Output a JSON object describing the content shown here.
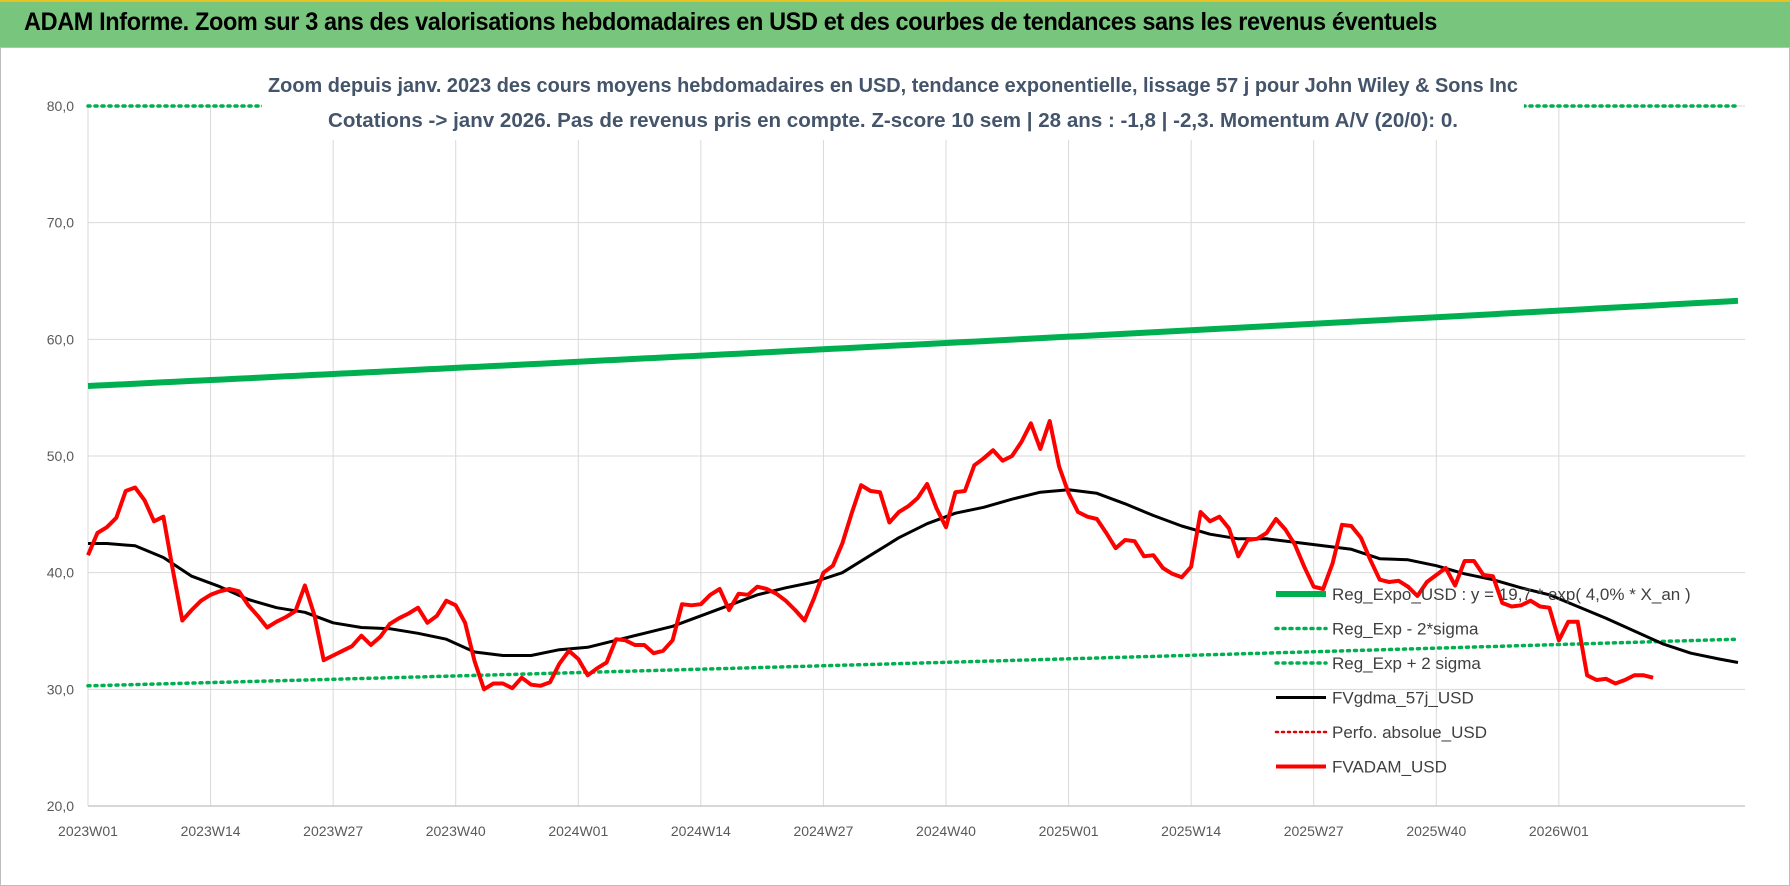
{
  "banner": {
    "title": "ADAM Informe. Zoom sur 3 ans des valorisations hebdomadaires en USD et des courbes de tendances sans les revenus éventuels"
  },
  "colors": {
    "banner_bg": "#78c57d",
    "reg_expo": "#00b050",
    "fvgdma": "#000000",
    "fvadam": "#ff0000",
    "perfo": "#e00000"
  },
  "chart_data": {
    "type": "line",
    "subtitle_lines": [
      "Zoom depuis janv. 2023 des cours moyens hebdomadaires en USD, tendance exponentielle, lissage 57 j pour John Wiley & Sons Inc",
      "Cotations -> janv 2026. Pas de revenus pris en compte. Z-score 10 sem | 28 ans : -1,8 | -2,3. Momentum A/V (20/0): 0."
    ],
    "ylim": [
      20,
      80
    ],
    "y_ticks": [
      "20,0",
      "30,0",
      "40,0",
      "50,0",
      "60,0",
      "70,0",
      "80,0"
    ],
    "x_ticks": [
      "2023W01",
      "2023W14",
      "2023W27",
      "2023W40",
      "2024W01",
      "2024W14",
      "2024W27",
      "2024W40",
      "2025W01",
      "2025W14",
      "2025W27",
      "2025W40",
      "2026W01"
    ],
    "grid": true,
    "legend_position": "bottom-right",
    "series": [
      {
        "name": "Reg_Expo_USD : y = 19,7 * exp( 4,0% * X_an )",
        "style": "solid-thick",
        "start": 56.0,
        "end": 63.3
      },
      {
        "name": "Reg_Exp - 2*sigma",
        "style": "dotted",
        "start": 30.3,
        "end": 34.3
      },
      {
        "name": "Reg_Exp + 2 sigma",
        "style": "dotted",
        "start": 80.0,
        "end": 80.0
      },
      {
        "name": "FVgdma_57j_USD",
        "style": "solid",
        "points": [
          [
            1,
            42.5
          ],
          [
            3,
            42.5
          ],
          [
            6,
            42.3
          ],
          [
            9,
            41.3
          ],
          [
            12,
            39.7
          ],
          [
            15,
            38.8
          ],
          [
            18,
            37.7
          ],
          [
            21,
            37.0
          ],
          [
            24,
            36.6
          ],
          [
            27,
            35.7
          ],
          [
            30,
            35.3
          ],
          [
            33,
            35.2
          ],
          [
            36,
            34.8
          ],
          [
            39,
            34.3
          ],
          [
            42,
            33.2
          ],
          [
            45,
            32.9
          ],
          [
            48,
            32.9
          ],
          [
            51,
            33.4
          ],
          [
            54,
            33.6
          ],
          [
            57,
            34.2
          ],
          [
            60,
            34.8
          ],
          [
            63,
            35.4
          ],
          [
            66,
            36.3
          ],
          [
            69,
            37.2
          ],
          [
            72,
            38.1
          ],
          [
            75,
            38.7
          ],
          [
            78,
            39.2
          ],
          [
            81,
            40.0
          ],
          [
            84,
            41.5
          ],
          [
            87,
            43.0
          ],
          [
            90,
            44.2
          ],
          [
            93,
            45.1
          ],
          [
            96,
            45.6
          ],
          [
            99,
            46.3
          ],
          [
            102,
            46.9
          ],
          [
            105,
            47.1
          ],
          [
            108,
            46.8
          ],
          [
            111,
            45.9
          ],
          [
            114,
            44.9
          ],
          [
            117,
            44.0
          ],
          [
            120,
            43.3
          ],
          [
            123,
            42.9
          ],
          [
            126,
            42.9
          ],
          [
            129,
            42.6
          ],
          [
            132,
            42.3
          ],
          [
            135,
            42.0
          ],
          [
            138,
            41.2
          ],
          [
            141,
            41.1
          ],
          [
            144,
            40.6
          ],
          [
            147,
            39.9
          ],
          [
            150,
            39.4
          ],
          [
            153,
            38.7
          ],
          [
            156,
            38.1
          ],
          [
            159,
            37.1
          ],
          [
            162,
            36.1
          ],
          [
            165,
            35.0
          ],
          [
            168,
            33.9
          ],
          [
            171,
            33.1
          ],
          [
            174,
            32.6
          ],
          [
            176,
            32.3
          ]
        ]
      },
      {
        "name": "Perfo. absolue_USD",
        "style": "dotted",
        "points": []
      },
      {
        "name": "FVADAM_USD",
        "style": "solid-thick",
        "points": [
          [
            1,
            41.5
          ],
          [
            2,
            43.4
          ],
          [
            3,
            43.9
          ],
          [
            4,
            44.7
          ],
          [
            5,
            47.0
          ],
          [
            6,
            47.3
          ],
          [
            7,
            46.2
          ],
          [
            8,
            44.4
          ],
          [
            9,
            44.8
          ],
          [
            10,
            40.2
          ],
          [
            11,
            35.9
          ],
          [
            12,
            36.8
          ],
          [
            13,
            37.6
          ],
          [
            14,
            38.1
          ],
          [
            15,
            38.4
          ],
          [
            16,
            38.6
          ],
          [
            17,
            38.4
          ],
          [
            18,
            37.2
          ],
          [
            19,
            36.3
          ],
          [
            20,
            35.3
          ],
          [
            21,
            35.8
          ],
          [
            22,
            36.2
          ],
          [
            23,
            36.7
          ],
          [
            24,
            38.9
          ],
          [
            25,
            36.4
          ],
          [
            26,
            32.5
          ],
          [
            27,
            32.9
          ],
          [
            28,
            33.3
          ],
          [
            29,
            33.7
          ],
          [
            30,
            34.6
          ],
          [
            31,
            33.8
          ],
          [
            32,
            34.5
          ],
          [
            33,
            35.6
          ],
          [
            34,
            36.1
          ],
          [
            35,
            36.5
          ],
          [
            36,
            37.0
          ],
          [
            37,
            35.7
          ],
          [
            38,
            36.3
          ],
          [
            39,
            37.6
          ],
          [
            40,
            37.2
          ],
          [
            41,
            35.7
          ],
          [
            42,
            32.4
          ],
          [
            43,
            30.0
          ],
          [
            44,
            30.5
          ],
          [
            45,
            30.5
          ],
          [
            46,
            30.1
          ],
          [
            47,
            31.0
          ],
          [
            48,
            30.4
          ],
          [
            49,
            30.3
          ],
          [
            50,
            30.6
          ],
          [
            51,
            32.2
          ],
          [
            52,
            33.3
          ],
          [
            53,
            32.6
          ],
          [
            54,
            31.2
          ],
          [
            55,
            31.8
          ],
          [
            56,
            32.3
          ],
          [
            57,
            34.3
          ],
          [
            58,
            34.2
          ],
          [
            59,
            33.8
          ],
          [
            60,
            33.8
          ],
          [
            61,
            33.1
          ],
          [
            62,
            33.3
          ],
          [
            63,
            34.2
          ],
          [
            64,
            37.3
          ],
          [
            65,
            37.2
          ],
          [
            66,
            37.3
          ],
          [
            67,
            38.1
          ],
          [
            68,
            38.6
          ],
          [
            69,
            36.8
          ],
          [
            70,
            38.2
          ],
          [
            71,
            38.1
          ],
          [
            72,
            38.8
          ],
          [
            73,
            38.6
          ],
          [
            74,
            38.2
          ],
          [
            75,
            37.6
          ],
          [
            76,
            36.8
          ],
          [
            77,
            35.9
          ],
          [
            78,
            37.8
          ],
          [
            79,
            40.0
          ],
          [
            80,
            40.6
          ],
          [
            81,
            42.5
          ],
          [
            82,
            45.1
          ],
          [
            83,
            47.5
          ],
          [
            84,
            47.0
          ],
          [
            85,
            46.9
          ],
          [
            86,
            44.3
          ],
          [
            87,
            45.2
          ],
          [
            88,
            45.7
          ],
          [
            89,
            46.4
          ],
          [
            90,
            47.6
          ],
          [
            91,
            45.5
          ],
          [
            92,
            43.9
          ],
          [
            93,
            46.9
          ],
          [
            94,
            47.0
          ],
          [
            95,
            49.2
          ],
          [
            96,
            49.8
          ],
          [
            97,
            50.5
          ],
          [
            98,
            49.6
          ],
          [
            99,
            50.0
          ],
          [
            100,
            51.2
          ],
          [
            101,
            52.8
          ],
          [
            102,
            50.6
          ],
          [
            103,
            53.0
          ],
          [
            104,
            49.1
          ],
          [
            105,
            46.8
          ],
          [
            106,
            45.2
          ],
          [
            107,
            44.8
          ],
          [
            108,
            44.6
          ],
          [
            109,
            43.4
          ],
          [
            110,
            42.1
          ],
          [
            111,
            42.8
          ],
          [
            112,
            42.7
          ],
          [
            113,
            41.4
          ],
          [
            114,
            41.5
          ],
          [
            115,
            40.4
          ],
          [
            116,
            39.9
          ],
          [
            117,
            39.6
          ],
          [
            118,
            40.5
          ],
          [
            119,
            45.2
          ],
          [
            120,
            44.4
          ],
          [
            121,
            44.8
          ],
          [
            122,
            43.8
          ],
          [
            123,
            41.4
          ],
          [
            124,
            42.8
          ],
          [
            125,
            42.9
          ],
          [
            126,
            43.4
          ],
          [
            127,
            44.6
          ],
          [
            128,
            43.7
          ],
          [
            129,
            42.4
          ],
          [
            130,
            40.5
          ],
          [
            131,
            38.8
          ],
          [
            132,
            38.6
          ],
          [
            133,
            40.8
          ],
          [
            134,
            44.1
          ],
          [
            135,
            44.0
          ],
          [
            136,
            43.0
          ],
          [
            137,
            41.1
          ],
          [
            138,
            39.4
          ],
          [
            139,
            39.2
          ],
          [
            140,
            39.3
          ],
          [
            141,
            38.8
          ],
          [
            142,
            38.0
          ],
          [
            143,
            39.2
          ],
          [
            144,
            39.8
          ],
          [
            145,
            40.4
          ],
          [
            146,
            38.9
          ],
          [
            147,
            41.0
          ],
          [
            148,
            41.0
          ],
          [
            149,
            39.8
          ],
          [
            150,
            39.7
          ],
          [
            151,
            37.4
          ],
          [
            152,
            37.1
          ],
          [
            153,
            37.2
          ],
          [
            154,
            37.6
          ],
          [
            155,
            37.1
          ],
          [
            156,
            37.0
          ],
          [
            157,
            34.2
          ],
          [
            158,
            35.8
          ],
          [
            159,
            35.8
          ],
          [
            160,
            31.2
          ],
          [
            161,
            30.8
          ],
          [
            162,
            30.9
          ],
          [
            163,
            30.5
          ],
          [
            164,
            30.8
          ],
          [
            165,
            31.2
          ],
          [
            166,
            31.2
          ],
          [
            167,
            31.0
          ]
        ]
      }
    ]
  }
}
